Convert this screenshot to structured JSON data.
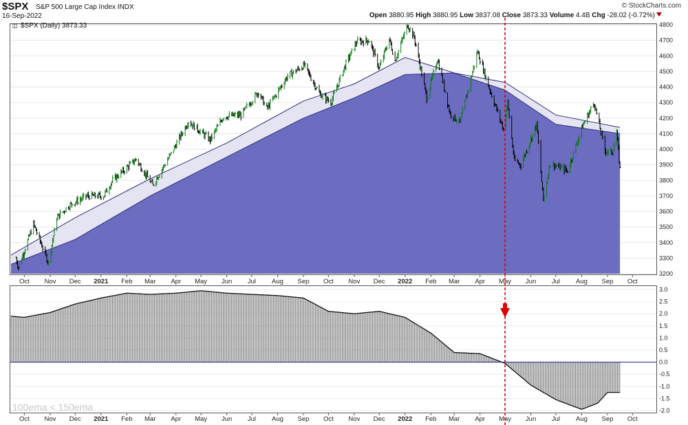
{
  "header": {
    "symbol": "$SPX",
    "name": "S&P 500 Large Cap Index INDX",
    "date": "16-Sep-2022",
    "brand": "© StockCharts.com",
    "open_label": "Open",
    "open": "3880.95",
    "high_label": "High",
    "high": "3880.95",
    "low_label": "Low",
    "low": "3837.08",
    "close_label": "Close",
    "close": "3873.33",
    "volume_label": "Volume",
    "volume": "4.4B",
    "chg_label": "Chg",
    "chg": "-28.02 (-0.72%)"
  },
  "colors": {
    "price_up": "#0b7a12",
    "price_down": "#000000",
    "ema_fill": "#6c6cc0",
    "band_fill": "#e4e4f2",
    "hist_fill": "#777777",
    "marker": "#dd0000",
    "zero_line": "#1a1a8c"
  },
  "chart_data": [
    {
      "type": "line",
      "legend": "$SPX (Daily) 3873.33",
      "x_tick_labels": [
        "Oct",
        "Nov",
        "Dec",
        "2021",
        "Feb",
        "Mar",
        "Apr",
        "May",
        "Jun",
        "Jul",
        "Aug",
        "Sep",
        "Oct",
        "Nov",
        "Dec",
        "2022",
        "Feb",
        "Mar",
        "Apr",
        "May",
        "Jun",
        "Jul",
        "Aug",
        "Sep",
        "Oct"
      ],
      "ylim": [
        3200,
        4800
      ],
      "y_ticks": [
        3200,
        3300,
        3400,
        3500,
        3600,
        3700,
        3800,
        3900,
        4000,
        4100,
        4200,
        4300,
        4400,
        4500,
        4600,
        4700,
        4800
      ],
      "series": [
        {
          "x": [
            "2020-09-20",
            "2020-09-24",
            "2020-10-12",
            "2020-10-30",
            "2020-11-09",
            "2020-11-24",
            "2020-12-15",
            "2021-01-04",
            "2021-01-15",
            "2021-02-12",
            "2021-03-04",
            "2021-03-26",
            "2021-04-16",
            "2021-05-12",
            "2021-05-28",
            "2021-06-18",
            "2021-07-09",
            "2021-07-19",
            "2021-08-13",
            "2021-09-02",
            "2021-09-20",
            "2021-10-04",
            "2021-10-22",
            "2021-11-04",
            "2021-11-19",
            "2021-12-01",
            "2021-12-13",
            "2021-12-20",
            "2022-01-04",
            "2022-01-12",
            "2022-01-27",
            "2022-02-09",
            "2022-02-24",
            "2022-03-08",
            "2022-03-29",
            "2022-04-11",
            "2022-04-29",
            "2022-05-04",
            "2022-05-12",
            "2022-05-20",
            "2022-06-08",
            "2022-06-16",
            "2022-06-24",
            "2022-07-15",
            "2022-08-02",
            "2022-08-16",
            "2022-08-29",
            "2022-09-07",
            "2022-09-12",
            "2022-09-16"
          ],
          "values": [
            3320,
            3240,
            3520,
            3270,
            3560,
            3640,
            3700,
            3700,
            3800,
            3935,
            3770,
            3970,
            4180,
            4060,
            4210,
            4220,
            4370,
            4260,
            4470,
            4540,
            4360,
            4300,
            4550,
            4690,
            4700,
            4520,
            4710,
            4570,
            4800,
            4720,
            4330,
            4580,
            4230,
            4170,
            4630,
            4410,
            4130,
            4300,
            3930,
            3900,
            4160,
            3670,
            3910,
            3860,
            4150,
            4300,
            3990,
            3980,
            4110,
            3873
          ]
        }
      ],
      "ema": {
        "x": [
          "2020-09-15",
          "2020-12-01",
          "2021-03-01",
          "2021-06-01",
          "2021-09-01",
          "2021-11-01",
          "2022-01-01",
          "2022-03-01",
          "2022-05-01",
          "2022-07-01",
          "2022-09-16"
        ],
        "ema100": [
          3320,
          3560,
          3810,
          4040,
          4310,
          4420,
          4590,
          4490,
          4380,
          4160,
          4100
        ],
        "ema150": [
          3260,
          3420,
          3700,
          3950,
          4200,
          4330,
          4480,
          4490,
          4430,
          4220,
          4140
        ]
      }
    },
    {
      "type": "bar",
      "indicator_label": "100ema < 150ema",
      "ylim": [
        -2.0,
        3.0
      ],
      "y_ticks": [
        3.0,
        2.5,
        2.0,
        1.5,
        1.0,
        0.5,
        0.0,
        -0.5,
        -1.0,
        -1.5,
        -2.0
      ],
      "x": [
        "2020-09-15",
        "2020-10-01",
        "2020-11-01",
        "2020-12-01",
        "2021-01-01",
        "2021-02-01",
        "2021-03-01",
        "2021-04-01",
        "2021-05-01",
        "2021-06-01",
        "2021-07-01",
        "2021-08-01",
        "2021-09-01",
        "2021-10-01",
        "2021-11-01",
        "2021-12-01",
        "2022-01-01",
        "2022-02-01",
        "2022-03-01",
        "2022-04-01",
        "2022-05-01",
        "2022-06-01",
        "2022-07-01",
        "2022-08-01",
        "2022-08-20",
        "2022-09-01",
        "2022-09-16"
      ],
      "values": [
        1.9,
        1.85,
        2.05,
        2.4,
        2.65,
        2.85,
        2.8,
        2.85,
        2.95,
        2.85,
        2.8,
        2.75,
        2.65,
        2.1,
        2.0,
        2.1,
        1.85,
        1.2,
        0.4,
        0.35,
        -0.05,
        -0.95,
        -1.55,
        -1.95,
        -1.7,
        -1.25,
        -1.25
      ]
    }
  ],
  "marker": {
    "date": "2022-05-01"
  }
}
